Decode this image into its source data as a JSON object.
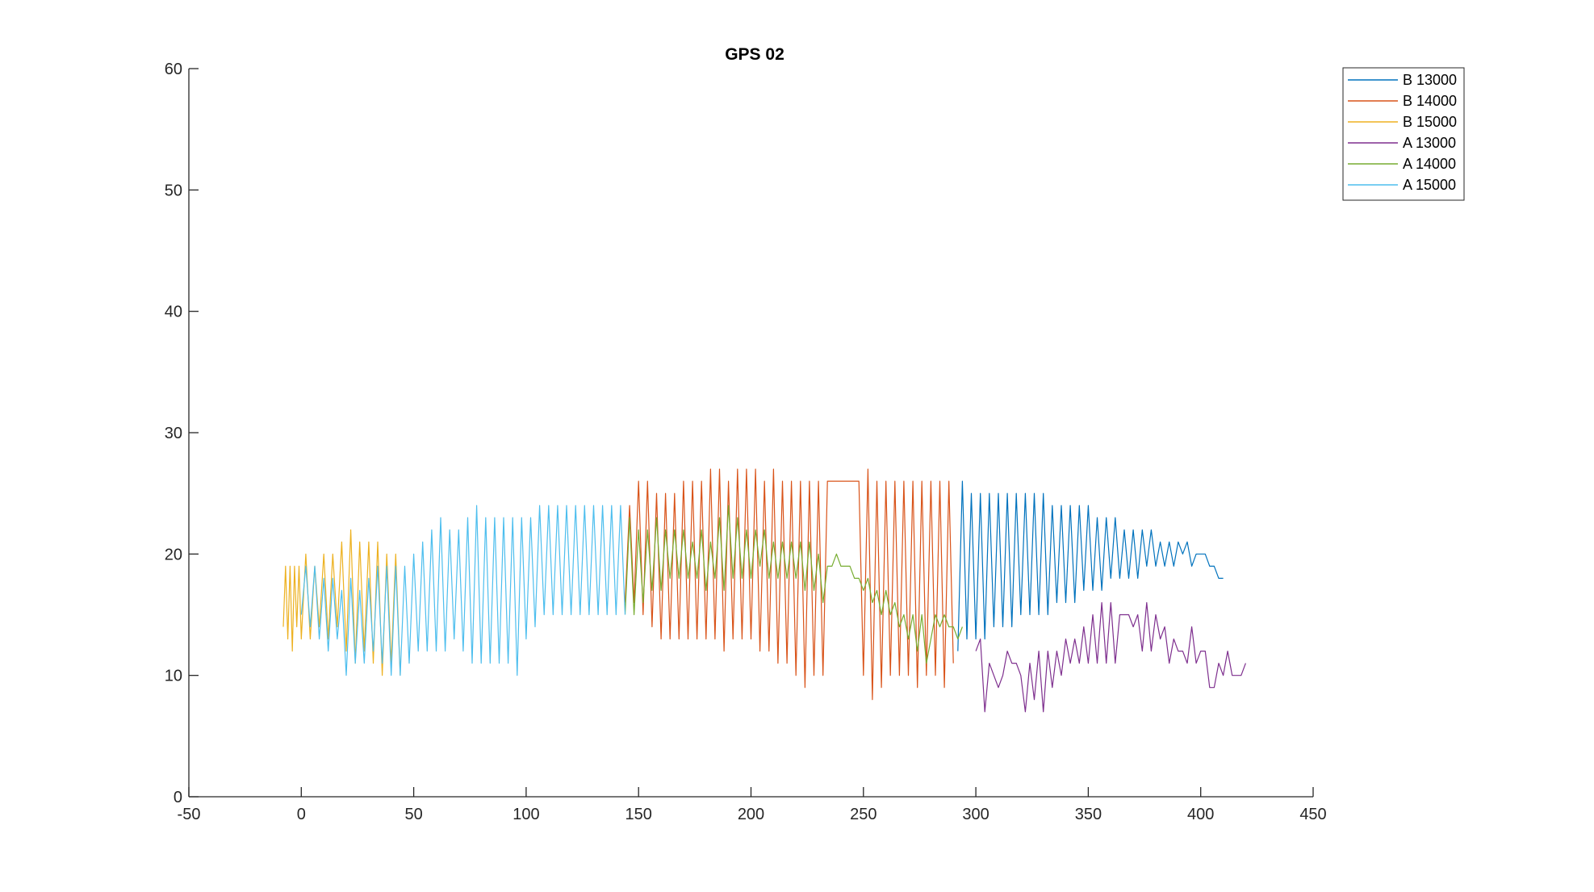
{
  "chart_data": {
    "type": "line",
    "title": "GPS 02",
    "xlabel": "",
    "ylabel": "",
    "xlim": [
      -50,
      450
    ],
    "ylim": [
      0,
      60
    ],
    "xticks": [
      -50,
      0,
      50,
      100,
      150,
      200,
      250,
      300,
      350,
      400,
      450
    ],
    "yticks": [
      0,
      10,
      20,
      30,
      40,
      50,
      60
    ],
    "xtick_labels": [
      "-50",
      "0",
      "50",
      "100",
      "150",
      "200",
      "250",
      "300",
      "350",
      "400",
      "450"
    ],
    "ytick_labels": [
      "0",
      "10",
      "20",
      "30",
      "40",
      "50",
      "60"
    ],
    "grid": false,
    "legend_position": "top-right",
    "series": [
      {
        "name": "B 13000",
        "color": "#0072BD",
        "x": [
          292,
          294,
          296,
          298,
          300,
          302,
          304,
          306,
          308,
          310,
          312,
          314,
          316,
          318,
          320,
          322,
          324,
          326,
          328,
          330,
          332,
          334,
          336,
          338,
          340,
          342,
          344,
          346,
          348,
          350,
          352,
          354,
          356,
          358,
          360,
          362,
          364,
          366,
          368,
          370,
          372,
          374,
          376,
          378,
          380,
          382,
          384,
          386,
          388,
          390,
          392,
          394,
          396,
          398,
          400,
          402,
          404,
          406,
          408,
          410
        ],
        "y": [
          12,
          26,
          13,
          25,
          13,
          25,
          13,
          25,
          14,
          25,
          14,
          25,
          14,
          25,
          15,
          25,
          15,
          25,
          15,
          25,
          15,
          24,
          16,
          24,
          16,
          24,
          16,
          24,
          17,
          24,
          17,
          23,
          17,
          23,
          18,
          23,
          18,
          22,
          18,
          22,
          18,
          22,
          19,
          22,
          19,
          21,
          19,
          21,
          19,
          21,
          20,
          21,
          19,
          20,
          20,
          20,
          19,
          19,
          18,
          18
        ]
      },
      {
        "name": "B 14000",
        "color": "#D95319",
        "x": [
          144,
          146,
          148,
          150,
          152,
          154,
          156,
          158,
          160,
          162,
          164,
          166,
          168,
          170,
          172,
          174,
          176,
          178,
          180,
          182,
          184,
          186,
          188,
          190,
          192,
          194,
          196,
          198,
          200,
          202,
          204,
          206,
          208,
          210,
          212,
          214,
          216,
          218,
          220,
          222,
          224,
          226,
          228,
          230,
          232,
          234,
          248,
          250,
          252,
          254,
          256,
          258,
          260,
          262,
          264,
          266,
          268,
          270,
          272,
          274,
          276,
          278,
          280,
          282,
          284,
          286,
          288,
          290
        ],
        "y": [
          16,
          24,
          16,
          26,
          15,
          26,
          14,
          25,
          13,
          25,
          13,
          25,
          13,
          26,
          13,
          26,
          13,
          26,
          13,
          27,
          13,
          27,
          12,
          26,
          13,
          27,
          13,
          27,
          13,
          27,
          12,
          26,
          12,
          27,
          11,
          26,
          11,
          26,
          10,
          26,
          9,
          26,
          10,
          26,
          10,
          26,
          26,
          10,
          27,
          8,
          26,
          9,
          26,
          10,
          26,
          10,
          26,
          10,
          26,
          9,
          26,
          10,
          26,
          10,
          26,
          9,
          26,
          11
        ]
      },
      {
        "name": "B 15000",
        "color": "#EDB120",
        "x": [
          -8,
          -7,
          -6,
          -5,
          -4,
          -3,
          -2,
          -1,
          0,
          2,
          4,
          6,
          8,
          10,
          12,
          14,
          16,
          18,
          20,
          22,
          24,
          26,
          28,
          30,
          32,
          34,
          36,
          38,
          40,
          42,
          44
        ],
        "y": [
          14,
          19,
          13,
          19,
          12,
          19,
          14,
          19,
          13,
          20,
          13,
          19,
          14,
          20,
          13,
          20,
          14,
          21,
          12,
          22,
          11,
          21,
          12,
          21,
          11,
          21,
          10,
          20,
          11,
          20,
          10
        ]
      },
      {
        "name": "A 13000",
        "color": "#7E2F8E",
        "x": [
          300,
          302,
          304,
          306,
          308,
          310,
          312,
          314,
          316,
          318,
          320,
          322,
          324,
          326,
          328,
          330,
          332,
          334,
          336,
          338,
          340,
          342,
          344,
          346,
          348,
          350,
          352,
          354,
          356,
          358,
          360,
          362,
          364,
          366,
          368,
          370,
          372,
          374,
          376,
          378,
          380,
          382,
          384,
          386,
          388,
          390,
          392,
          394,
          396,
          398,
          400,
          402,
          404,
          406,
          408,
          410,
          412,
          414,
          416,
          418,
          420
        ],
        "y": [
          12,
          13,
          7,
          11,
          10,
          9,
          10,
          12,
          11,
          11,
          10,
          7,
          11,
          8,
          12,
          7,
          12,
          9,
          12,
          10,
          13,
          11,
          13,
          11,
          14,
          11,
          15,
          11,
          16,
          11,
          16,
          11,
          15,
          15,
          15,
          14,
          15,
          12,
          16,
          12,
          15,
          13,
          14,
          11,
          13,
          12,
          12,
          11,
          14,
          11,
          12,
          12,
          9,
          9,
          11,
          10,
          12,
          10,
          10,
          10,
          11
        ]
      },
      {
        "name": "A 14000",
        "color": "#77AC30",
        "x": [
          144,
          146,
          148,
          150,
          152,
          154,
          156,
          158,
          160,
          162,
          164,
          166,
          168,
          170,
          172,
          174,
          176,
          178,
          180,
          182,
          184,
          186,
          188,
          190,
          192,
          194,
          196,
          198,
          200,
          202,
          204,
          206,
          208,
          210,
          212,
          214,
          216,
          218,
          220,
          222,
          224,
          226,
          228,
          230,
          232,
          234,
          236,
          238,
          240,
          242,
          244,
          246,
          248,
          250,
          252,
          254,
          256,
          258,
          260,
          262,
          264,
          266,
          268,
          270,
          272,
          274,
          276,
          278,
          280,
          282,
          284,
          286,
          288,
          290,
          292,
          294
        ],
        "y": [
          15,
          23,
          15,
          22,
          16,
          22,
          17,
          23,
          17,
          22,
          18,
          22,
          18,
          22,
          18,
          21,
          18,
          22,
          17,
          21,
          18,
          23,
          17,
          24,
          18,
          23,
          18,
          22,
          18,
          22,
          19,
          22,
          18,
          21,
          18,
          21,
          18,
          21,
          18,
          21,
          17,
          21,
          17,
          20,
          16,
          19,
          19,
          20,
          19,
          19,
          19,
          18,
          18,
          17,
          18,
          16,
          17,
          15,
          17,
          15,
          16,
          14,
          15,
          13,
          15,
          12,
          15,
          11,
          13,
          15,
          14,
          15,
          14,
          14,
          13,
          14
        ]
      },
      {
        "name": "A 15000",
        "color": "#4DBEEE",
        "x": [
          0,
          2,
          4,
          6,
          8,
          10,
          12,
          14,
          16,
          18,
          20,
          22,
          24,
          26,
          28,
          30,
          32,
          34,
          36,
          38,
          40,
          42,
          44,
          46,
          48,
          50,
          52,
          54,
          56,
          58,
          60,
          62,
          64,
          66,
          68,
          70,
          72,
          74,
          76,
          78,
          80,
          82,
          84,
          86,
          88,
          90,
          92,
          94,
          96,
          98,
          100,
          102,
          104,
          106,
          108,
          110,
          112,
          114,
          116,
          118,
          120,
          122,
          124,
          126,
          128,
          130,
          132,
          134,
          136,
          138,
          140,
          142,
          144
        ],
        "y": [
          15,
          19,
          14,
          19,
          13,
          18,
          12,
          18,
          13,
          17,
          10,
          18,
          11,
          17,
          11,
          18,
          12,
          19,
          11,
          19,
          10,
          19,
          10,
          19,
          11,
          20,
          12,
          21,
          12,
          22,
          12,
          23,
          12,
          22,
          13,
          22,
          12,
          23,
          11,
          24,
          11,
          23,
          11,
          23,
          11,
          23,
          11,
          23,
          10,
          23,
          13,
          23,
          14,
          24,
          15,
          24,
          15,
          24,
          15,
          24,
          15,
          24,
          15,
          24,
          15,
          24,
          15,
          24,
          15,
          24,
          15,
          24,
          15
        ]
      }
    ]
  }
}
